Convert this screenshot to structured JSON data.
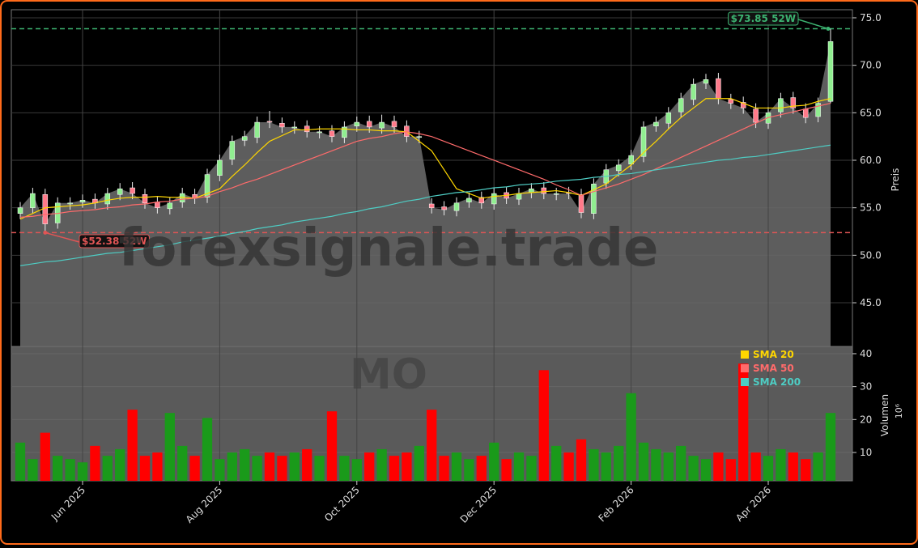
{
  "chart_data": {
    "type": "candlestick",
    "categories": [
      null,
      null,
      null,
      null,
      null,
      "Jun 2025",
      null,
      null,
      null,
      null,
      null,
      null,
      null,
      null,
      null,
      null,
      "Aug 2025",
      null,
      null,
      null,
      null,
      null,
      null,
      null,
      null,
      null,
      null,
      "Oct 2025",
      null,
      null,
      null,
      null,
      null,
      null,
      null,
      null,
      null,
      null,
      "Dec 2025",
      null,
      null,
      null,
      null,
      null,
      null,
      null,
      null,
      null,
      null,
      "Feb 2026",
      null,
      null,
      null,
      null,
      null,
      null,
      null,
      null,
      null,
      null,
      "Apr 2026",
      null,
      null,
      null,
      null,
      null
    ],
    "open": [
      54.4,
      55.0,
      56.4,
      53.4,
      55.4,
      55.6,
      55.9,
      55.4,
      56.4,
      57.1,
      56.4,
      55.6,
      54.9,
      55.6,
      56.4,
      56.1,
      58.4,
      60.1,
      62.1,
      62.4,
      64.1,
      63.9,
      63.4,
      63.6,
      62.9,
      63.1,
      62.4,
      63.6,
      64.1,
      63.4,
      64.1,
      63.6,
      62.4,
      55.4,
      55.1,
      54.7,
      55.6,
      56.1,
      55.4,
      56.6,
      55.9,
      56.6,
      57.1,
      56.4,
      56.6,
      56.4,
      54.4,
      57.6,
      58.9,
      59.6,
      60.4,
      63.6,
      63.9,
      65.1,
      66.4,
      68.1,
      68.6,
      66.4,
      66.1,
      65.4,
      63.9,
      65.1,
      66.6,
      65.4,
      64.6,
      66.2
    ],
    "high": [
      55.6,
      57.1,
      57.0,
      56.1,
      56.1,
      56.4,
      56.5,
      57.1,
      57.6,
      57.7,
      57.0,
      56.2,
      56.1,
      57.1,
      57.0,
      59.1,
      60.6,
      62.6,
      63.1,
      64.6,
      65.2,
      64.5,
      64.1,
      64.2,
      63.6,
      63.7,
      64.1,
      64.6,
      64.7,
      64.8,
      64.7,
      64.2,
      63.1,
      56.0,
      55.7,
      56.1,
      56.6,
      56.7,
      57.1,
      57.2,
      57.1,
      57.6,
      57.7,
      57.1,
      57.2,
      57.0,
      58.1,
      59.6,
      60.1,
      61.1,
      64.1,
      64.6,
      65.6,
      67.1,
      68.6,
      69.1,
      69.2,
      67.0,
      66.7,
      66.0,
      65.6,
      67.1,
      67.2,
      66.0,
      66.6,
      73.85
    ],
    "low": [
      53.8,
      54.4,
      52.4,
      52.8,
      54.8,
      55.0,
      54.9,
      54.8,
      55.8,
      55.9,
      54.9,
      54.4,
      54.3,
      55.0,
      55.4,
      55.5,
      57.8,
      59.5,
      61.5,
      61.8,
      63.4,
      62.9,
      62.8,
      62.4,
      62.3,
      61.9,
      61.8,
      63.0,
      62.9,
      62.8,
      62.9,
      61.9,
      61.8,
      54.4,
      54.2,
      54.1,
      55.0,
      54.9,
      54.8,
      55.4,
      55.3,
      56.0,
      55.9,
      55.8,
      55.9,
      53.9,
      53.8,
      57.0,
      58.3,
      59.0,
      59.8,
      63.0,
      63.3,
      64.5,
      65.8,
      67.5,
      65.9,
      65.4,
      64.9,
      63.4,
      63.3,
      64.5,
      64.9,
      63.9,
      64.0,
      66.0
    ],
    "close": [
      55.0,
      56.5,
      53.3,
      55.5,
      55.5,
      55.8,
      55.5,
      56.5,
      57.0,
      56.5,
      55.5,
      55.0,
      55.5,
      56.5,
      56.0,
      58.5,
      60.0,
      62.0,
      62.5,
      64.0,
      64.0,
      63.5,
      63.5,
      63.0,
      63.0,
      62.5,
      63.5,
      64.0,
      63.5,
      64.0,
      63.5,
      62.5,
      62.5,
      55.0,
      54.8,
      55.5,
      56.0,
      55.5,
      56.5,
      56.0,
      56.5,
      57.0,
      56.5,
      56.5,
      56.5,
      54.5,
      57.5,
      59.0,
      59.5,
      60.5,
      63.5,
      64.0,
      65.0,
      66.5,
      68.0,
      68.5,
      66.5,
      66.0,
      65.5,
      64.0,
      65.0,
      66.5,
      65.5,
      64.5,
      66.0,
      72.5
    ],
    "up_color": "#90ee90",
    "down_color": "#ff7a8a",
    "area_color": "#676767",
    "ylim": [
      40.4,
      75.85
    ],
    "yticks": [
      {
        "value": 45,
        "label": "45.0"
      },
      {
        "value": 50,
        "label": "50.0"
      },
      {
        "value": 55,
        "label": "55.0"
      },
      {
        "value": 60,
        "label": "60.0"
      },
      {
        "value": 65,
        "label": "65.0"
      },
      {
        "value": 70,
        "label": "70.0"
      },
      {
        "value": 75,
        "label": "75.0"
      }
    ],
    "ylabel": "Preis",
    "grid": true,
    "legend": "upper right",
    "watermark": "forexsignale.trade",
    "symbol": "MO",
    "series": [
      {
        "name": "SMA 20",
        "color": "#ffd700",
        "values": [
          53.8,
          54.4,
          55.0,
          55.1,
          55.2,
          55.3,
          55.5,
          55.8,
          56.0,
          56.1,
          56.1,
          56.2,
          56.1,
          56.1,
          56.0,
          56.5,
          57.0,
          58.3,
          59.5,
          60.8,
          62.0,
          62.6,
          63.2,
          63.2,
          63.3,
          63.3,
          63.3,
          63.2,
          63.2,
          63.1,
          63.1,
          63.0,
          62.0,
          61.0,
          59.0,
          57.0,
          56.5,
          56.0,
          56.2,
          56.3,
          56.5,
          56.6,
          56.7,
          56.8,
          56.6,
          56.3,
          56.9,
          57.5,
          58.5,
          59.5,
          60.8,
          62.0,
          63.3,
          64.5,
          65.5,
          66.5,
          66.5,
          66.5,
          66.0,
          65.5,
          65.5,
          65.5,
          65.7,
          65.8,
          66.2,
          66.5
        ]
      },
      {
        "name": "SMA 50",
        "color": "#ff6b6b",
        "values": [
          54.0,
          54.1,
          54.3,
          54.4,
          54.6,
          54.7,
          54.8,
          55.0,
          55.1,
          55.3,
          55.4,
          55.6,
          55.7,
          55.9,
          56.0,
          56.2,
          56.7,
          57.1,
          57.6,
          58.0,
          58.5,
          59.0,
          59.5,
          60.0,
          60.5,
          61.0,
          61.5,
          62.0,
          62.3,
          62.5,
          62.8,
          63.0,
          62.8,
          62.5,
          62.0,
          61.5,
          61.0,
          60.5,
          60.0,
          59.5,
          59.0,
          58.5,
          58.0,
          57.4,
          56.9,
          56.3,
          56.7,
          57.1,
          57.5,
          58.0,
          58.5,
          59.1,
          59.7,
          60.3,
          60.9,
          61.5,
          62.1,
          62.7,
          63.3,
          63.9,
          64.5,
          64.8,
          65.1,
          65.4,
          65.7,
          66.0
        ]
      },
      {
        "name": "SMA 200",
        "color": "#4ecdc4",
        "values": [
          48.9,
          49.1,
          49.3,
          49.4,
          49.6,
          49.8,
          50.0,
          50.2,
          50.3,
          50.5,
          50.7,
          50.9,
          51.1,
          51.4,
          51.6,
          51.8,
          52.0,
          52.3,
          52.5,
          52.8,
          53.0,
          53.2,
          53.5,
          53.7,
          53.9,
          54.1,
          54.4,
          54.6,
          54.9,
          55.1,
          55.4,
          55.7,
          55.9,
          56.2,
          56.4,
          56.6,
          56.7,
          56.9,
          57.1,
          57.2,
          57.4,
          57.5,
          57.6,
          57.8,
          57.9,
          58.0,
          58.2,
          58.3,
          58.5,
          58.6,
          58.8,
          59.0,
          59.2,
          59.4,
          59.6,
          59.8,
          60.0,
          60.1,
          60.3,
          60.4,
          60.6,
          60.8,
          61.0,
          61.2,
          61.4,
          61.6
        ]
      }
    ],
    "hlines": [
      {
        "value": 73.85,
        "color": "#3cb371",
        "label": "$73.85 52W"
      },
      {
        "value": 52.38,
        "color": "#e05555",
        "label": "$52.38 52W"
      }
    ],
    "volume": {
      "values": [
        13,
        8,
        16,
        9,
        8,
        7,
        12,
        9,
        11,
        23,
        9,
        10,
        22,
        12,
        9,
        20.5,
        8,
        10,
        11,
        9,
        10,
        9,
        10,
        11,
        9,
        22.5,
        9,
        8,
        10,
        11,
        9,
        10,
        12,
        23,
        9,
        10,
        8,
        9,
        13,
        8,
        10,
        9,
        35,
        12,
        10,
        14,
        11,
        10,
        12,
        28,
        13,
        11,
        10,
        12,
        9,
        8,
        10,
        8,
        37,
        10,
        9,
        11,
        10,
        8,
        10,
        22
      ],
      "up_color": "#1a9a1a",
      "down_color": "#ff0000",
      "ylim": [
        1.4,
        42.2
      ],
      "yticks": [
        10,
        20,
        30,
        40
      ],
      "ylabel": "Volumen",
      "offset_label": "10⁶"
    }
  }
}
